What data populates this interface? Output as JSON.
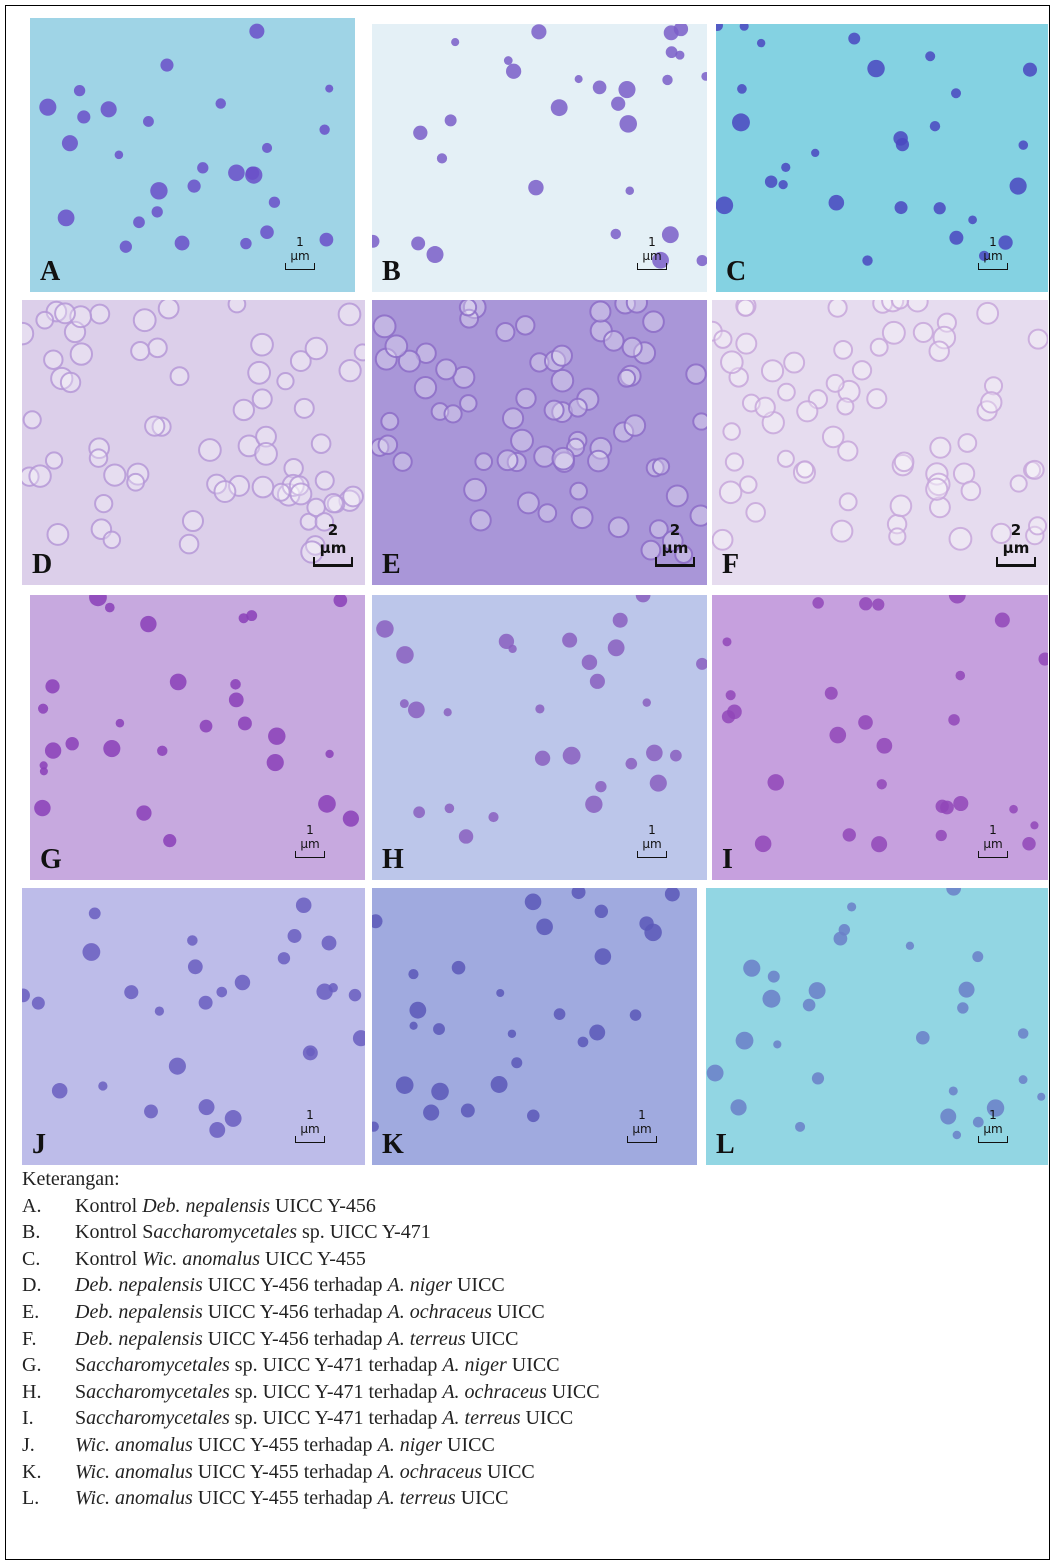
{
  "figure": {
    "panels": [
      {
        "label": "A",
        "scale": "1 µm"
      },
      {
        "label": "B",
        "scale": "1 µm"
      },
      {
        "label": "C",
        "scale": "1 µm"
      },
      {
        "label": "D",
        "scale": "2 µm"
      },
      {
        "label": "E",
        "scale": "2 µm"
      },
      {
        "label": "F",
        "scale": "2 µm"
      },
      {
        "label": "G",
        "scale": "1 µm"
      },
      {
        "label": "H",
        "scale": "1 µm"
      },
      {
        "label": "I",
        "scale": "1 µm"
      },
      {
        "label": "J",
        "scale": "1 µm"
      },
      {
        "label": "K",
        "scale": "1 µm"
      },
      {
        "label": "L",
        "scale": "1 µm"
      }
    ],
    "legend_title": "Keterangan:",
    "items": [
      {
        "letter": "A.",
        "parts": [
          {
            "text": "Kontrol ",
            "italic": false
          },
          {
            "text": "Deb. nepalensis",
            "italic": true
          },
          {
            "text": " UICC Y-456",
            "italic": false
          }
        ]
      },
      {
        "letter": "B.",
        "parts": [
          {
            "text": "Kontrol S",
            "italic": false
          },
          {
            "text": "accharomycetales",
            "italic": true
          },
          {
            "text": " sp. UICC Y-471",
            "italic": false
          }
        ]
      },
      {
        "letter": "C.",
        "parts": [
          {
            "text": "Kontrol ",
            "italic": false
          },
          {
            "text": "Wic. anomalus",
            "italic": true
          },
          {
            "text": " UICC Y-455",
            "italic": false
          }
        ]
      },
      {
        "letter": "D.",
        "parts": [
          {
            "text": "Deb. nepalensis",
            "italic": true
          },
          {
            "text": " UICC Y-456 terhadap ",
            "italic": false
          },
          {
            "text": "A. niger",
            "italic": true
          },
          {
            "text": " UICC",
            "italic": false
          }
        ]
      },
      {
        "letter": "E.",
        "parts": [
          {
            "text": "Deb. nepalensis",
            "italic": true
          },
          {
            "text": " UICC Y-456 terhadap ",
            "italic": false
          },
          {
            "text": "A. ochraceus",
            "italic": true
          },
          {
            "text": " UICC",
            "italic": false
          }
        ]
      },
      {
        "letter": "F.",
        "parts": [
          {
            "text": "Deb. nepalensis",
            "italic": true
          },
          {
            "text": " UICC Y-456 terhadap ",
            "italic": false
          },
          {
            "text": "A. terreus",
            "italic": true
          },
          {
            "text": " UICC",
            "italic": false
          }
        ]
      },
      {
        "letter": "G.",
        "parts": [
          {
            "text": "S",
            "italic": false
          },
          {
            "text": "accharomycetales",
            "italic": true
          },
          {
            "text": " sp. UICC Y-471 terhadap ",
            "italic": false
          },
          {
            "text": "A. niger",
            "italic": true
          },
          {
            "text": " UICC",
            "italic": false
          }
        ]
      },
      {
        "letter": "H.",
        "parts": [
          {
            "text": "S",
            "italic": false
          },
          {
            "text": "accharomycetales",
            "italic": true
          },
          {
            "text": " sp. UICC Y-471 terhadap ",
            "italic": false
          },
          {
            "text": "A. ochraceus",
            "italic": true
          },
          {
            "text": " UICC",
            "italic": false
          }
        ]
      },
      {
        "letter": "I.",
        "parts": [
          {
            "text": "S",
            "italic": false
          },
          {
            "text": "accharomycetales",
            "italic": true
          },
          {
            "text": " sp. UICC Y-471 terhadap ",
            "italic": false
          },
          {
            "text": "A. terreus",
            "italic": true
          },
          {
            "text": " UICC",
            "italic": false
          }
        ]
      },
      {
        "letter": "J.",
        "parts": [
          {
            "text": "Wic. anomalus",
            "italic": true
          },
          {
            "text": " UICC Y-455 terhadap ",
            "italic": false
          },
          {
            "text": "A. niger",
            "italic": true
          },
          {
            "text": " UICC",
            "italic": false
          }
        ]
      },
      {
        "letter": "K.",
        "parts": [
          {
            "text": "Wic. anomalus",
            "italic": true
          },
          {
            "text": " UICC Y-455 terhadap ",
            "italic": false
          },
          {
            "text": "A. ochraceus",
            "italic": true
          },
          {
            "text": " UICC",
            "italic": false
          }
        ]
      },
      {
        "letter": "L.",
        "parts": [
          {
            "text": "Wic. anomalus",
            "italic": true
          },
          {
            "text": " UICC Y-455 terhadap ",
            "italic": false
          },
          {
            "text": "A. terreus",
            "italic": true
          },
          {
            "text": " UICC",
            "italic": false
          }
        ]
      }
    ]
  }
}
